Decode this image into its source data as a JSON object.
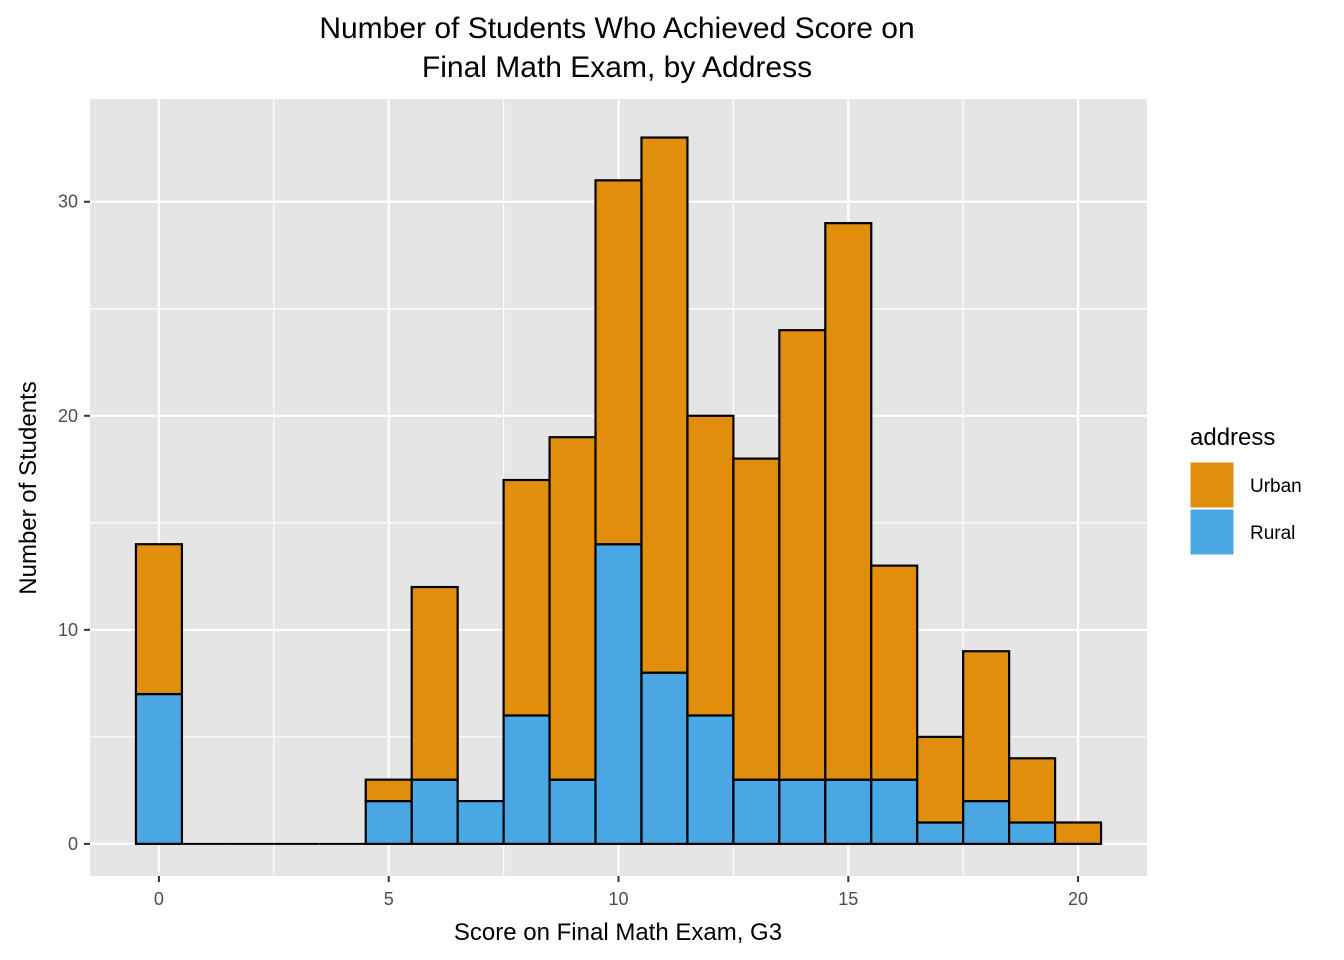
{
  "chart_data": {
    "type": "bar",
    "stacked": true,
    "title_lines": [
      "Number of Students Who Achieved Score on",
      "Final Math Exam, by Address"
    ],
    "xlabel": "Score on Final Math Exam, G3",
    "ylabel": "Number of Students",
    "x": [
      0,
      1,
      2,
      3,
      4,
      5,
      6,
      7,
      8,
      9,
      10,
      11,
      12,
      13,
      14,
      15,
      16,
      17,
      18,
      19,
      20
    ],
    "series": [
      {
        "name": "Rural",
        "color": "#4aa7e4",
        "values": [
          7,
          0,
          0,
          0,
          0,
          2,
          3,
          2,
          6,
          3,
          14,
          8,
          6,
          3,
          3,
          3,
          3,
          1,
          2,
          1,
          0
        ]
      },
      {
        "name": "Urban",
        "color": "#e08e0b",
        "values": [
          7,
          0,
          0,
          0,
          0,
          1,
          9,
          0,
          11,
          16,
          17,
          25,
          14,
          15,
          21,
          26,
          10,
          4,
          7,
          3,
          1
        ]
      }
    ],
    "bar_outline_color": "#000000",
    "xlim": [
      -1.5,
      21.5
    ],
    "ylim": [
      -1.5,
      34.8
    ],
    "x_ticks": [
      0,
      5,
      10,
      15,
      20
    ],
    "y_ticks": [
      0,
      10,
      20,
      30
    ],
    "grid": true,
    "panel_color": "#e5e5e5",
    "grid_color": "#ffffff",
    "legend": {
      "title": "address",
      "position": "right",
      "items": [
        {
          "label": "Urban",
          "color": "#e08e0b"
        },
        {
          "label": "Rural",
          "color": "#4aa7e4"
        }
      ]
    }
  }
}
